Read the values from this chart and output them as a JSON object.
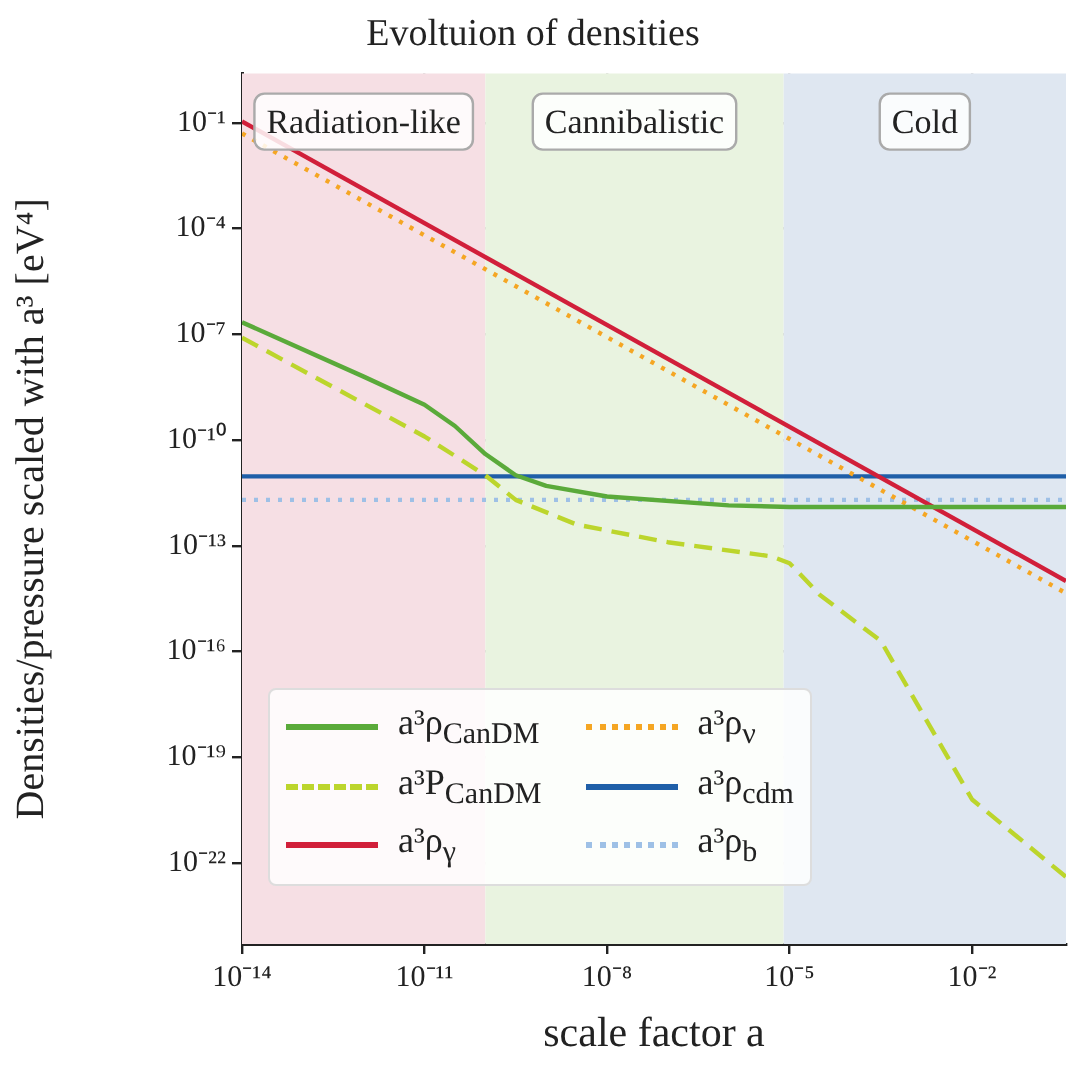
{
  "chart_data": {
    "type": "line",
    "title": "Evoltuion of densities",
    "xlabel": "scale factor a",
    "ylabel": "Densities/pressure scaled with a³ [eV⁴]",
    "log": "xy",
    "grid": true,
    "legend": "bottom left",
    "marker": "none",
    "xlim": [
      1e-14,
      0.35
    ],
    "ylim": [
      5e-25,
      2.5
    ],
    "xticks": [
      {
        "value": 1e-14,
        "label": "10⁻¹⁴"
      },
      {
        "value": 1e-11,
        "label": "10⁻¹¹"
      },
      {
        "value": 1e-08,
        "label": "10⁻⁸"
      },
      {
        "value": 1e-05,
        "label": "10⁻⁵"
      },
      {
        "value": 0.01,
        "label": "10⁻²"
      }
    ],
    "yticks": [
      {
        "value": 1e-22,
        "label": "10⁻²²"
      },
      {
        "value": 1e-19,
        "label": "10⁻¹⁹"
      },
      {
        "value": 1e-16,
        "label": "10⁻¹⁶"
      },
      {
        "value": 1e-13,
        "label": "10⁻¹³"
      },
      {
        "value": 1e-10,
        "label": "10⁻¹⁰"
      },
      {
        "value": 1e-07,
        "label": "10⁻⁷"
      },
      {
        "value": 0.0001,
        "label": "10⁻⁴"
      },
      {
        "value": 0.1,
        "label": "10⁻¹"
      }
    ],
    "bands": [
      {
        "axis": "x",
        "from": 1e-14,
        "to": 1e-10,
        "label": "Radiation-like",
        "color": "#f6dfe4"
      },
      {
        "axis": "x",
        "from": 1e-10,
        "to": 8e-06,
        "label": "Cannibalistic",
        "color": "#e9f3e0"
      },
      {
        "axis": "x",
        "from": 8e-06,
        "to": 0.35,
        "label": "Cold",
        "color": "#dfe7f1"
      }
    ],
    "series": [
      {
        "name": "a³ρ$_{CanDM}$",
        "color": "#5aaa3a",
        "line_style": "solid",
        "x": [
          1e-14,
          1e-12,
          1e-11,
          3.16e-11,
          1e-10,
          3.16e-10,
          1e-09,
          1e-08,
          1e-06,
          1e-05,
          0.35
        ],
        "values": [
          2.2e-07,
          6.3e-09,
          1e-09,
          2.5e-10,
          4e-11,
          1e-11,
          5e-12,
          2.5e-12,
          1.4e-12,
          1.26e-12,
          1.26e-12
        ]
      },
      {
        "name": "a³P$_{CanDM}$",
        "color": "#bcd52c",
        "line_style": "dashed",
        "x": [
          1e-14,
          1e-11,
          1e-10,
          3.16e-10,
          3.16e-09,
          1e-07,
          5e-06,
          1e-05,
          3.16e-05,
          0.000316,
          0.01,
          0.35
        ],
        "values": [
          8e-08,
          1.26e-10,
          1e-11,
          2e-12,
          4e-13,
          1.26e-13,
          5e-14,
          3.2e-14,
          4e-15,
          2e-16,
          6.3e-21,
          4e-23
        ]
      },
      {
        "name": "a³ρ$_{γ}$",
        "color": "#d11f3a",
        "line_style": "solid",
        "x": [
          1e-14,
          0.35
        ],
        "values": [
          0.11,
          1e-14
        ]
      },
      {
        "name": "a³ρ$_{ν}$",
        "color": "#f5a623",
        "line_style": "dotted",
        "x": [
          1e-14,
          0.35
        ],
        "values": [
          0.05,
          4.5e-15
        ]
      },
      {
        "name": "a³ρ$_{cdm}$",
        "color": "#1f5fa8",
        "line_style": "solid",
        "x": [
          1e-14,
          0.35
        ],
        "values": [
          9.3e-12,
          9.3e-12
        ]
      },
      {
        "name": "a³ρ$_{b}$",
        "color": "#9ec0e6",
        "line_style": "dotted",
        "x": [
          1e-14,
          0.35
        ],
        "values": [
          2e-12,
          2e-12
        ]
      }
    ]
  }
}
